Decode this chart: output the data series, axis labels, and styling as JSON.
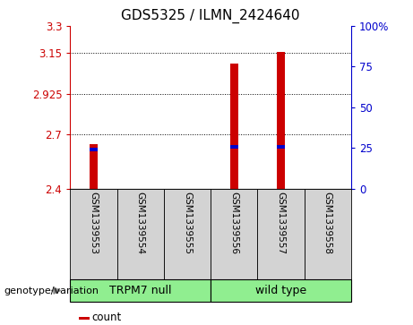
{
  "title": "GDS5325 / ILMN_2424640",
  "samples": [
    "GSM1339553",
    "GSM1339554",
    "GSM1339555",
    "GSM1339556",
    "GSM1339557",
    "GSM1339558"
  ],
  "count_values": [
    2.645,
    0,
    0,
    3.092,
    3.158,
    0
  ],
  "percentile_values": [
    2.618,
    0,
    0,
    2.632,
    2.632,
    0
  ],
  "ylim": [
    2.4,
    3.3
  ],
  "yticks": [
    2.4,
    2.7,
    2.925,
    3.15,
    3.3
  ],
  "ytick_labels": [
    "2.4",
    "2.7",
    "2.925",
    "3.15",
    "3.3"
  ],
  "right_yticks": [
    0,
    25,
    50,
    75,
    100
  ],
  "right_ytick_labels": [
    "0",
    "25",
    "50",
    "75",
    "100%"
  ],
  "groups": [
    {
      "label": "TRPM7 null",
      "indices": [
        0,
        1,
        2
      ],
      "color": "#90ee90"
    },
    {
      "label": "wild type",
      "indices": [
        3,
        4,
        5
      ],
      "color": "#90ee90"
    }
  ],
  "group_label": "genotype/variation",
  "bar_color": "#cc0000",
  "percentile_color": "#0000cc",
  "background_color": "#ffffff",
  "sample_bg_color": "#d3d3d3",
  "bar_width": 0.18,
  "title_fontsize": 11,
  "tick_fontsize": 8.5,
  "sample_fontsize": 7.5,
  "group_fontsize": 9
}
